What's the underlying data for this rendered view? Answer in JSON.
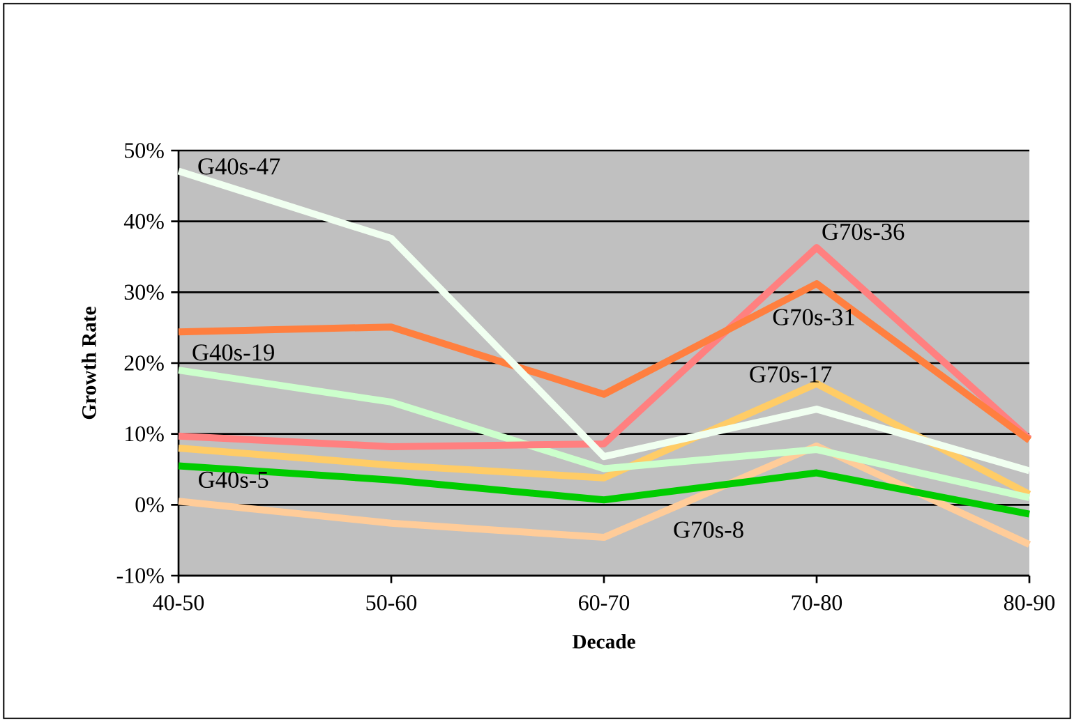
{
  "chart_data": {
    "type": "line",
    "xlabel": "Decade",
    "ylabel": "Growth Rate",
    "categories": [
      "40-50",
      "50-60",
      "60-70",
      "70-80",
      "80-90"
    ],
    "series": [
      {
        "color": "#ffcc99",
        "values": [
          0.5,
          -2.6,
          -4.6,
          8.3,
          -5.6
        ]
      },
      {
        "color": "#00cc00",
        "values": [
          5.5,
          3.5,
          0.7,
          4.5,
          -1.3
        ]
      },
      {
        "color": "#ffcc66",
        "values": [
          8.0,
          5.6,
          3.8,
          17.1,
          1.5
        ]
      },
      {
        "color": "#ccffcc",
        "values": [
          19.0,
          14.5,
          5.1,
          7.8,
          1.0
        ]
      },
      {
        "color": "#ff8080",
        "values": [
          9.7,
          8.2,
          8.6,
          36.3,
          9.3
        ]
      },
      {
        "color": "#ff7f3f",
        "values": [
          24.4,
          25.1,
          15.6,
          31.2,
          9.1
        ]
      },
      {
        "color": "#f0fff0",
        "values": [
          47.1,
          37.6,
          6.8,
          13.5,
          4.8
        ]
      }
    ],
    "ylim": [
      -10,
      50
    ],
    "yticks": [
      {
        "value": -10,
        "label": "-10%"
      },
      {
        "value": 0,
        "label": "0%"
      },
      {
        "value": 10,
        "label": "10%"
      },
      {
        "value": 20,
        "label": "20%"
      },
      {
        "value": 30,
        "label": "30%"
      },
      {
        "value": 40,
        "label": "40%"
      },
      {
        "value": 50,
        "label": "50%"
      }
    ],
    "grid": "y",
    "marker": "none",
    "line_style": "solid",
    "annotations": [
      {
        "text": "G40s-47",
        "x": "40-50",
        "y": 47.1
      },
      {
        "text": "G40s-19",
        "x": "40-50",
        "y": 19.0
      },
      {
        "text": "G40s-5",
        "x": "40-50",
        "y": 5.5
      },
      {
        "text": "G70s-36",
        "x": "70-80",
        "y": 36.3
      },
      {
        "text": "G70s-31",
        "x": "70-80",
        "y": 31.2
      },
      {
        "text": "G70s-17",
        "x": "70-80",
        "y": 17.1
      },
      "G70s-8"
    ]
  }
}
